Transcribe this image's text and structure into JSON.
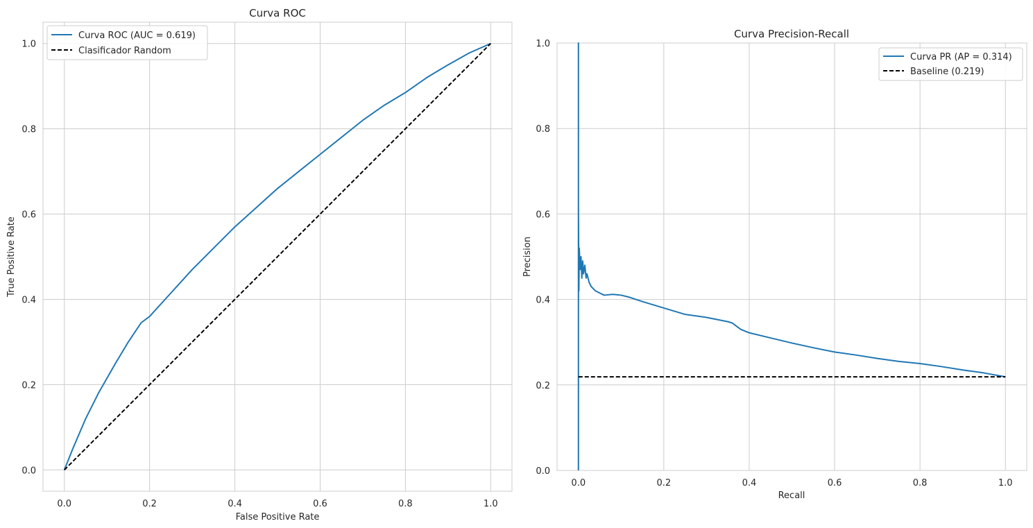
{
  "chart_data": [
    {
      "type": "line",
      "title": "Curva ROC",
      "xlabel": "False Positive Rate",
      "ylabel": "True Positive Rate",
      "xlim": [
        -0.05,
        1.05
      ],
      "ylim": [
        -0.05,
        1.05
      ],
      "xticks": [
        "0.0",
        "0.2",
        "0.4",
        "0.6",
        "0.8",
        "1.0"
      ],
      "yticks": [
        "0.0",
        "0.2",
        "0.4",
        "0.6",
        "0.8",
        "1.0"
      ],
      "grid": true,
      "legend_position": "top-left",
      "series": [
        {
          "name": "Curva ROC (AUC = 0.619)",
          "color": "#1f77b4",
          "style": "solid",
          "x": [
            0.0,
            0.02,
            0.05,
            0.08,
            0.1,
            0.12,
            0.15,
            0.18,
            0.2,
            0.25,
            0.3,
            0.35,
            0.4,
            0.45,
            0.5,
            0.55,
            0.6,
            0.65,
            0.7,
            0.75,
            0.8,
            0.85,
            0.9,
            0.95,
            1.0
          ],
          "y": [
            0.0,
            0.05,
            0.12,
            0.18,
            0.215,
            0.25,
            0.3,
            0.345,
            0.36,
            0.415,
            0.47,
            0.52,
            0.57,
            0.615,
            0.66,
            0.7,
            0.74,
            0.78,
            0.82,
            0.855,
            0.885,
            0.92,
            0.95,
            0.978,
            1.0
          ]
        },
        {
          "name": "Clasificador Random",
          "color": "#000000",
          "style": "dashed",
          "x": [
            0.0,
            1.0
          ],
          "y": [
            0.0,
            1.0
          ]
        }
      ]
    },
    {
      "type": "line",
      "title": "Curva Precision-Recall",
      "xlabel": "Recall",
      "ylabel": "Precision",
      "xlim": [
        -0.05,
        1.05
      ],
      "ylim": [
        0.0,
        1.0
      ],
      "xticks": [
        "0.0",
        "0.2",
        "0.4",
        "0.6",
        "0.8",
        "1.0"
      ],
      "yticks": [
        "0.0",
        "0.2",
        "0.4",
        "0.6",
        "0.8",
        "1.0"
      ],
      "grid": true,
      "legend_position": "top-right",
      "series": [
        {
          "name": "Curva PR (AP = 0.314)",
          "color": "#1f77b4",
          "style": "solid",
          "x": [
            0.0,
            0.0,
            0.0,
            0.0,
            0.001,
            0.002,
            0.004,
            0.006,
            0.008,
            0.01,
            0.012,
            0.015,
            0.018,
            0.02,
            0.025,
            0.03,
            0.04,
            0.05,
            0.06,
            0.08,
            0.1,
            0.12,
            0.15,
            0.2,
            0.25,
            0.3,
            0.35,
            0.36,
            0.38,
            0.4,
            0.45,
            0.5,
            0.55,
            0.6,
            0.65,
            0.7,
            0.75,
            0.8,
            0.85,
            0.9,
            0.95,
            1.0
          ],
          "y": [
            0.0,
            1.0,
            0.5,
            0.62,
            0.42,
            0.52,
            0.47,
            0.5,
            0.45,
            0.49,
            0.46,
            0.48,
            0.45,
            0.46,
            0.44,
            0.43,
            0.42,
            0.415,
            0.41,
            0.412,
            0.41,
            0.405,
            0.395,
            0.38,
            0.365,
            0.358,
            0.348,
            0.345,
            0.33,
            0.322,
            0.31,
            0.298,
            0.287,
            0.277,
            0.27,
            0.262,
            0.255,
            0.25,
            0.243,
            0.235,
            0.228,
            0.219
          ]
        },
        {
          "name": "Baseline (0.219)",
          "color": "#000000",
          "style": "dashed",
          "x": [
            0.0,
            1.0
          ],
          "y": [
            0.219,
            0.219
          ]
        }
      ]
    }
  ]
}
